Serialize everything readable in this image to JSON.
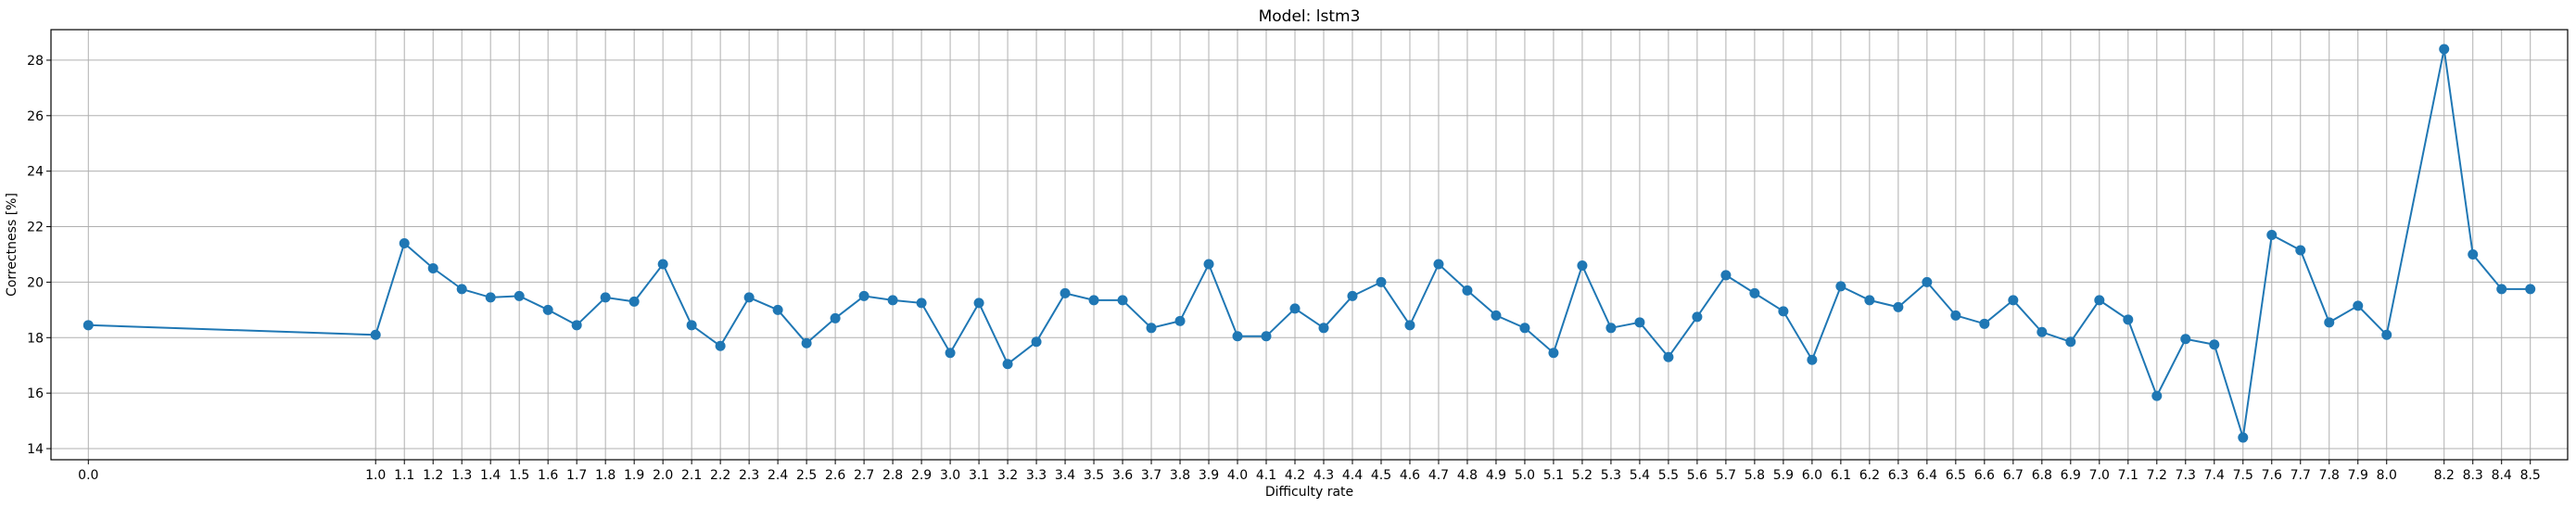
{
  "chart_data": {
    "type": "line",
    "title": "Model: lstm3",
    "xlabel": "Difficulty rate",
    "ylabel": "Correctness [%]",
    "grid": true,
    "xlim": [
      -0.13,
      8.63
    ],
    "ylim": [
      13.6,
      29.1
    ],
    "yticks": [
      14,
      16,
      18,
      20,
      22,
      24,
      26,
      28
    ],
    "series": [
      {
        "color": "#1f77b4",
        "x": [
          0.0,
          1.0,
          1.1,
          1.2,
          1.3,
          1.4,
          1.5,
          1.6,
          1.7,
          1.8,
          1.9,
          2.0,
          2.1,
          2.2,
          2.3,
          2.4,
          2.5,
          2.6,
          2.7,
          2.8,
          2.9,
          3.0,
          3.1,
          3.2,
          3.3,
          3.4,
          3.5,
          3.6,
          3.7,
          3.8,
          3.9,
          4.0,
          4.1,
          4.2,
          4.3,
          4.4,
          4.5,
          4.6,
          4.7,
          4.8,
          4.9,
          5.0,
          5.1,
          5.2,
          5.3,
          5.4,
          5.5,
          5.6,
          5.7,
          5.8,
          5.9,
          6.0,
          6.1,
          6.2,
          6.3,
          6.4,
          6.5,
          6.6,
          6.7,
          6.8,
          6.9,
          7.0,
          7.1,
          7.2,
          7.3,
          7.4,
          7.5,
          7.6,
          7.7,
          7.8,
          7.9,
          8.0,
          8.2,
          8.3,
          8.4,
          8.5
        ],
        "y": [
          18.45,
          18.1,
          21.4,
          20.5,
          19.75,
          19.45,
          19.5,
          19.0,
          18.45,
          19.45,
          19.3,
          20.65,
          18.45,
          17.7,
          19.45,
          19.0,
          17.8,
          18.7,
          19.5,
          19.35,
          19.25,
          17.45,
          19.25,
          17.05,
          17.85,
          19.6,
          19.35,
          19.35,
          18.35,
          18.6,
          20.65,
          18.05,
          18.05,
          19.05,
          18.35,
          19.5,
          20.0,
          18.45,
          20.65,
          19.7,
          18.8,
          18.35,
          17.45,
          20.6,
          18.35,
          18.55,
          17.3,
          18.75,
          20.25,
          19.6,
          18.95,
          17.2,
          19.85,
          19.35,
          19.1,
          20.0,
          18.8,
          18.5,
          19.35,
          18.2,
          17.85,
          19.35,
          18.65,
          15.9,
          17.95,
          17.75,
          14.4,
          21.7,
          21.15,
          18.55,
          19.15,
          18.1,
          28.4,
          21.0,
          19.75,
          19.75
        ]
      }
    ]
  }
}
